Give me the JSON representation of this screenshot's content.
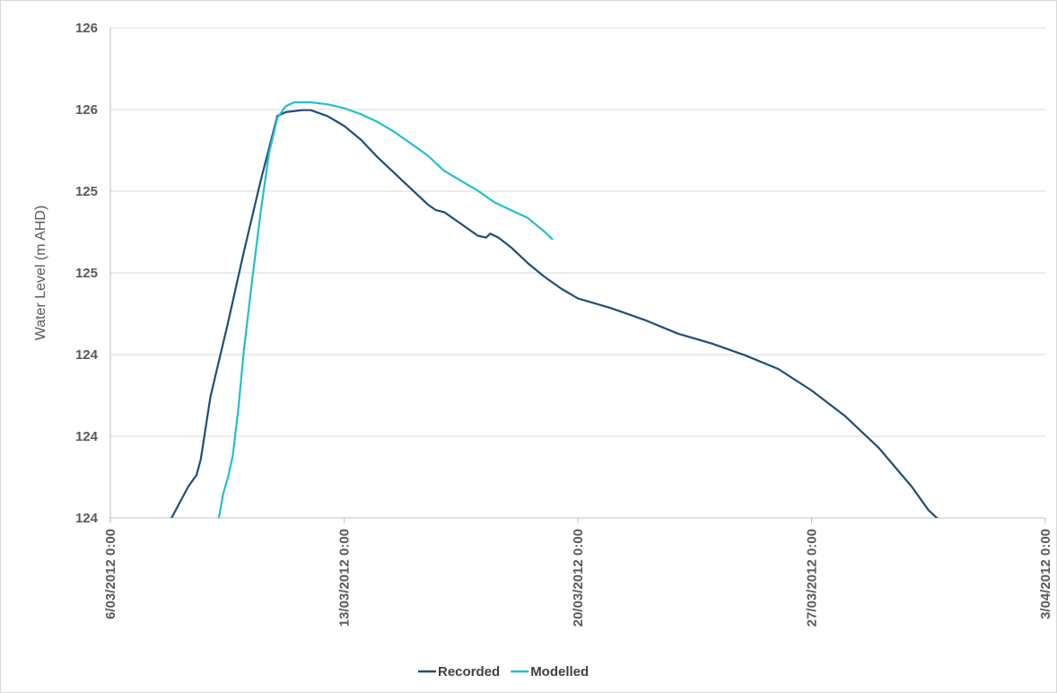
{
  "chart_data": {
    "type": "line",
    "title": "",
    "xlabel": "",
    "ylabel": "Water Level (m AHD)",
    "xlim": [
      "6/03/2012 0:00",
      "3/04/2012 0:00"
    ],
    "ylim": [
      124.0,
      126.5
    ],
    "x_ticks": [
      "6/03/2012 0:00",
      "13/03/2012 0:00",
      "20/03/2012 0:00",
      "27/03/2012 0:00",
      "3/04/2012 0:00"
    ],
    "y_ticks": [
      "124",
      "124",
      "124",
      "125",
      "125",
      "126",
      "126"
    ],
    "grid": "horizontal",
    "legend": "bottom",
    "series": [
      {
        "name": "Recorded",
        "color": "#1f4e79",
        "points": [
          [
            "7/03/2012 20:00",
            124.0
          ],
          [
            "8/03/2012 2:00",
            124.08
          ],
          [
            "8/03/2012 8:00",
            124.16
          ],
          [
            "8/03/2012 14:00",
            124.22
          ],
          [
            "8/03/2012 17:00",
            124.3
          ],
          [
            "9/03/2012 0:00",
            124.62
          ],
          [
            "9/03/2012 12:00",
            124.98
          ],
          [
            "10/03/2012 0:00",
            125.36
          ],
          [
            "10/03/2012 12:00",
            125.72
          ],
          [
            "11/03/2012 0:00",
            126.05
          ],
          [
            "11/03/2012 6:00",
            126.07
          ],
          [
            "11/03/2012 18:00",
            126.08
          ],
          [
            "12/03/2012 0:00",
            126.08
          ],
          [
            "12/03/2012 12:00",
            126.05
          ],
          [
            "13/03/2012 0:00",
            126.0
          ],
          [
            "13/03/2012 12:00",
            125.93
          ],
          [
            "14/03/2012 0:00",
            125.84
          ],
          [
            "14/03/2012 12:00",
            125.76
          ],
          [
            "15/03/2012 0:00",
            125.68
          ],
          [
            "15/03/2012 6:00",
            125.64
          ],
          [
            "15/03/2012 12:00",
            125.6
          ],
          [
            "15/03/2012 18:00",
            125.57
          ],
          [
            "16/03/2012 0:00",
            125.56
          ],
          [
            "16/03/2012 12:00",
            125.5
          ],
          [
            "17/03/2012 0:00",
            125.44
          ],
          [
            "17/03/2012 6:00",
            125.43
          ],
          [
            "17/03/2012 9:00",
            125.45
          ],
          [
            "17/03/2012 15:00",
            125.43
          ],
          [
            "18/03/2012 0:00",
            125.38
          ],
          [
            "18/03/2012 12:00",
            125.3
          ],
          [
            "19/03/2012 0:00",
            125.23
          ],
          [
            "19/03/2012 12:00",
            125.17
          ],
          [
            "20/03/2012 0:00",
            125.12
          ],
          [
            "21/03/2012 0:00",
            125.07
          ],
          [
            "22/03/2012 0:00",
            125.01
          ],
          [
            "23/03/2012 0:00",
            124.94
          ],
          [
            "24/03/2012 0:00",
            124.89
          ],
          [
            "25/03/2012 0:00",
            124.83
          ],
          [
            "26/03/2012 0:00",
            124.76
          ],
          [
            "27/03/2012 0:00",
            124.65
          ],
          [
            "28/03/2012 0:00",
            124.52
          ],
          [
            "29/03/2012 0:00",
            124.36
          ],
          [
            "30/03/2012 0:00",
            124.16
          ],
          [
            "30/03/2012 12:00",
            124.04
          ],
          [
            "31/03/2012 0:00",
            123.96
          ],
          [
            "31/03/2012 8:00",
            123.86
          ],
          [
            "31/03/2012 12:00",
            123.78
          ]
        ]
      },
      {
        "name": "Modelled",
        "color": "#22bfcc",
        "points": [
          [
            "9/03/2012 6:00",
            124.0
          ],
          [
            "9/03/2012 9:00",
            124.12
          ],
          [
            "9/03/2012 13:00",
            124.22
          ],
          [
            "9/03/2012 16:00",
            124.32
          ],
          [
            "9/03/2012 20:00",
            124.56
          ],
          [
            "10/03/2012 0:00",
            124.86
          ],
          [
            "10/03/2012 6:00",
            125.22
          ],
          [
            "10/03/2012 12:00",
            125.56
          ],
          [
            "10/03/2012 18:00",
            125.86
          ],
          [
            "11/03/2012 0:00",
            126.04
          ],
          [
            "11/03/2012 6:00",
            126.1
          ],
          [
            "11/03/2012 12:00",
            126.12
          ],
          [
            "12/03/2012 0:00",
            126.12
          ],
          [
            "12/03/2012 12:00",
            126.11
          ],
          [
            "13/03/2012 0:00",
            126.09
          ],
          [
            "13/03/2012 12:00",
            126.06
          ],
          [
            "14/03/2012 0:00",
            126.02
          ],
          [
            "14/03/2012 12:00",
            125.97
          ],
          [
            "15/03/2012 0:00",
            125.91
          ],
          [
            "15/03/2012 12:00",
            125.85
          ],
          [
            "16/03/2012 0:00",
            125.77
          ],
          [
            "16/03/2012 12:00",
            125.72
          ],
          [
            "17/03/2012 0:00",
            125.67
          ],
          [
            "17/03/2012 12:00",
            125.61
          ],
          [
            "18/03/2012 0:00",
            125.57
          ],
          [
            "18/03/2012 12:00",
            125.53
          ],
          [
            "19/03/2012 0:00",
            125.46
          ],
          [
            "19/03/2012 6:00",
            125.42
          ]
        ]
      }
    ]
  }
}
